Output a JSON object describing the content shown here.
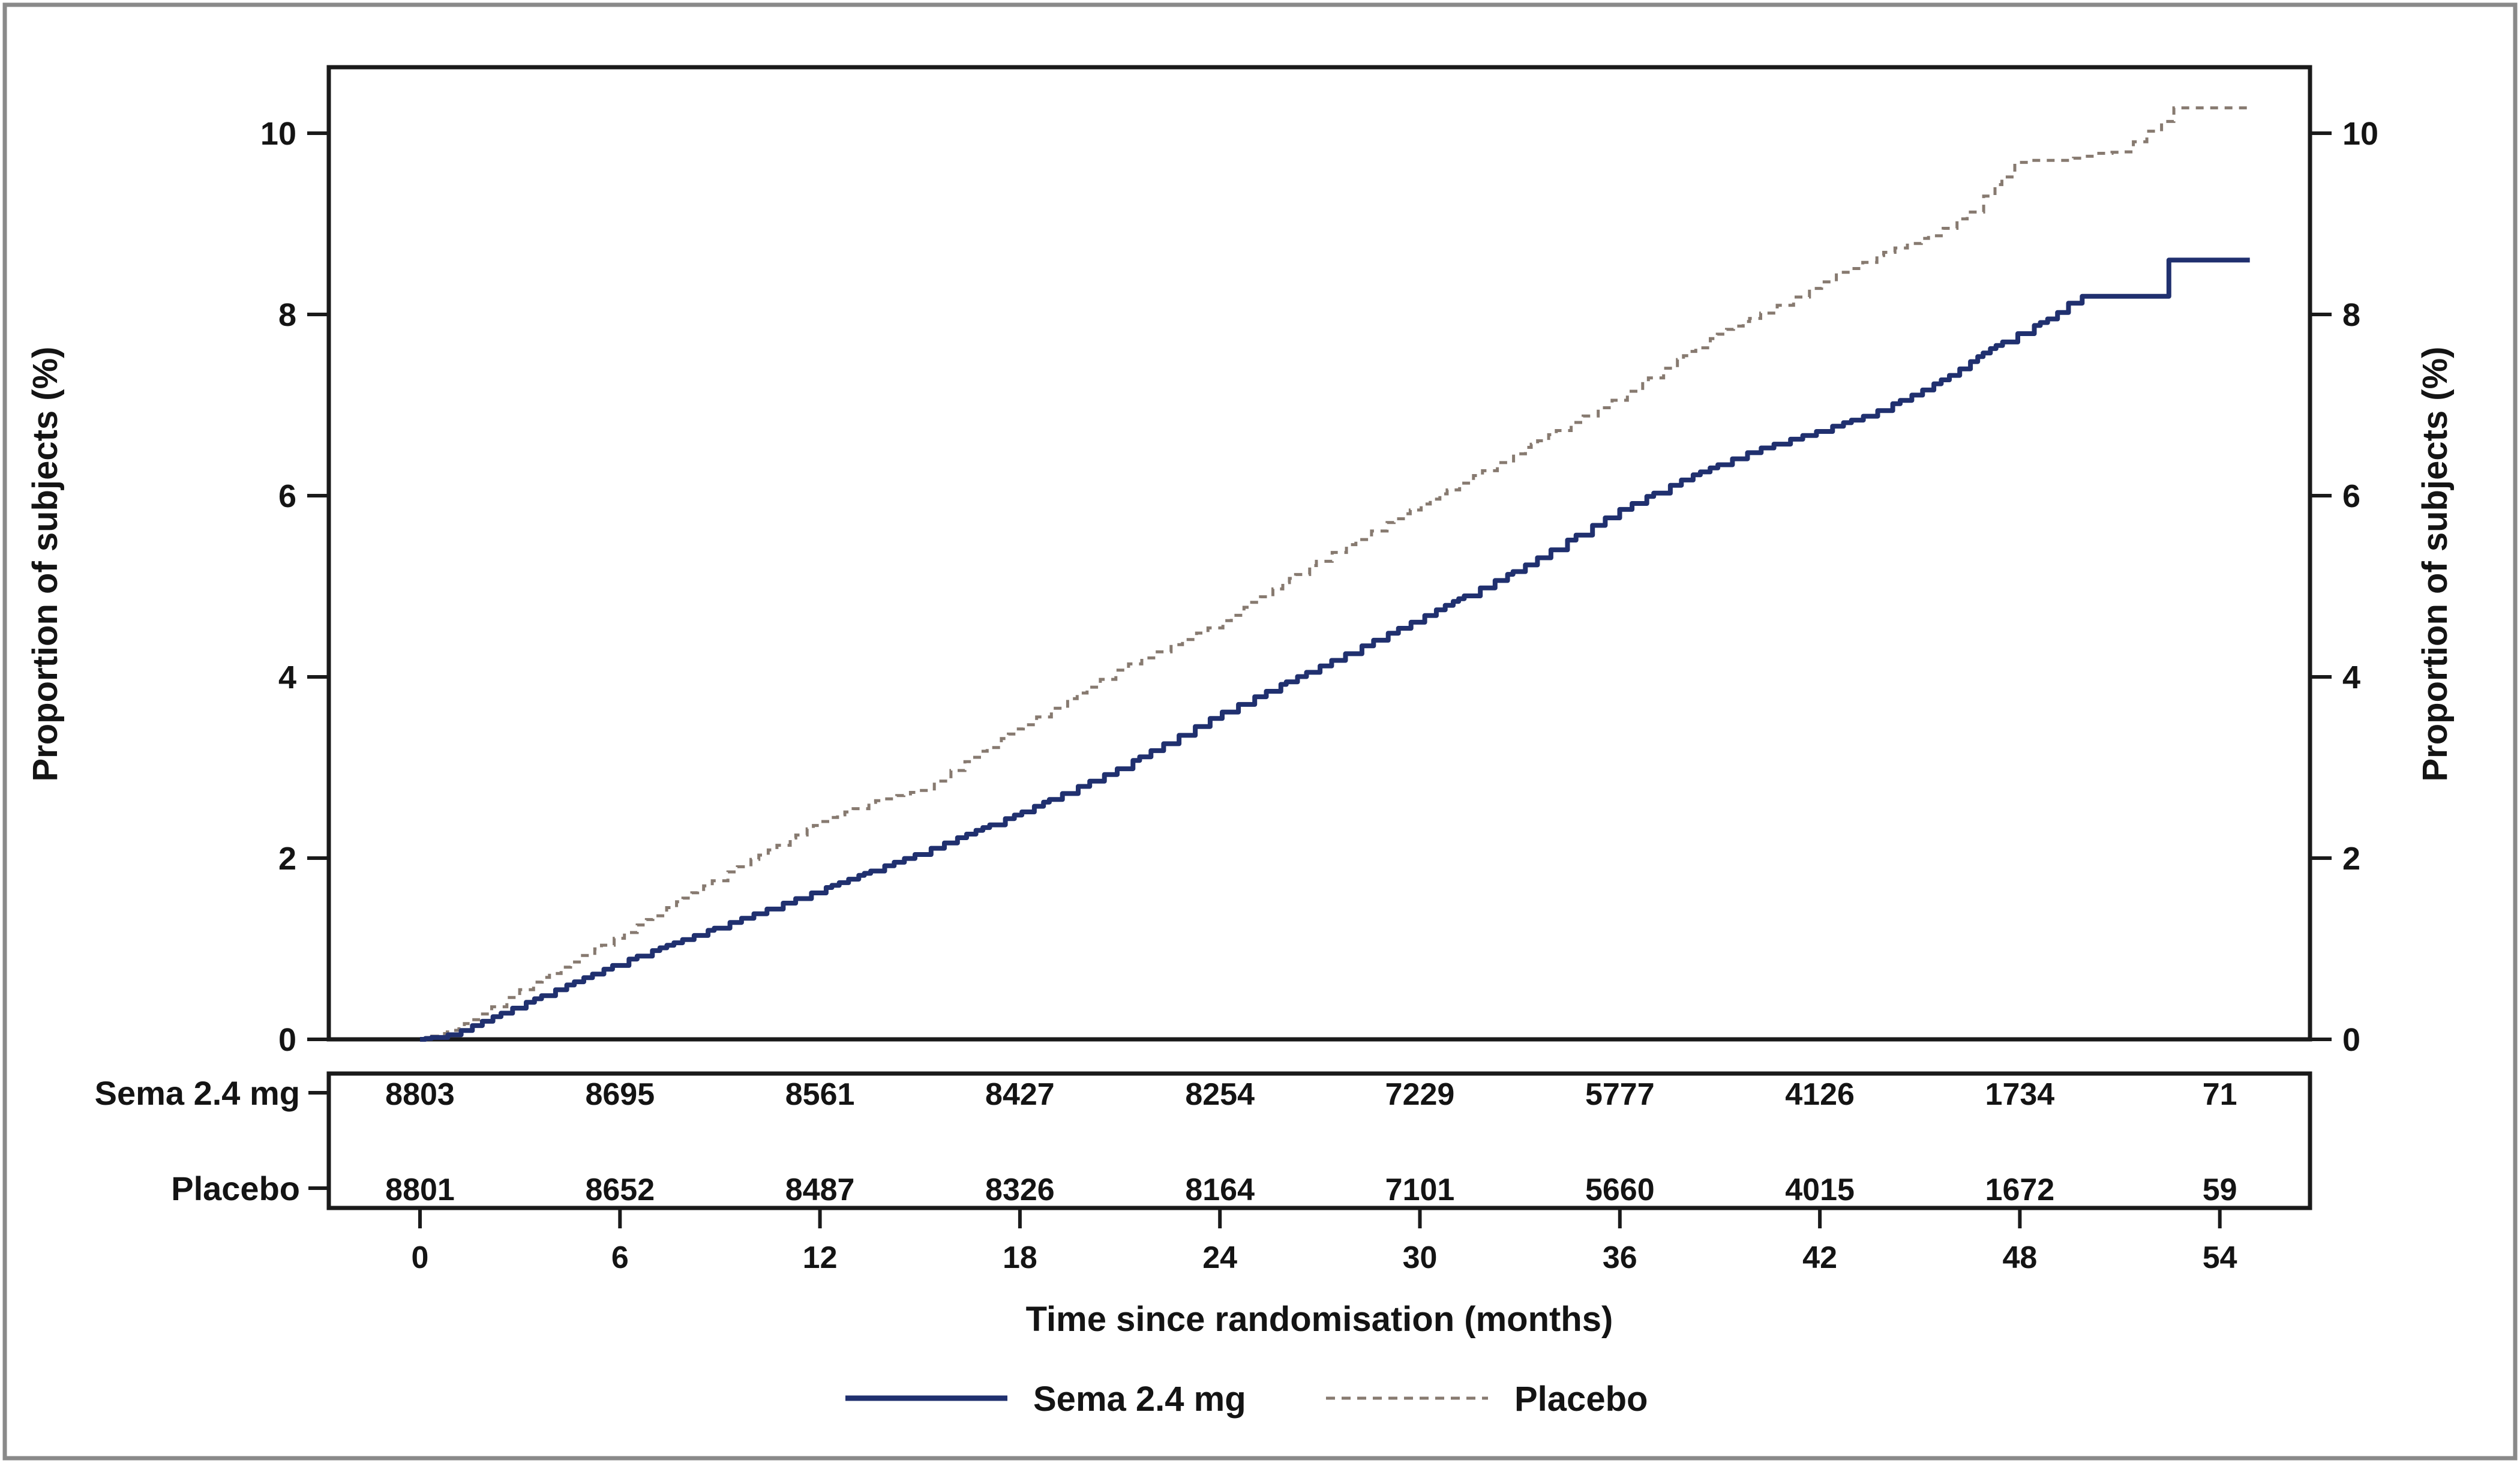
{
  "chart": {
    "x_axis": {
      "title": "Time since randomisation (months)",
      "ticks": [
        0,
        6,
        12,
        18,
        24,
        30,
        36,
        42,
        48,
        54
      ]
    },
    "y_axis": {
      "title": "Proportion of subjects (%)",
      "ticks": [
        0,
        2,
        4,
        6,
        8,
        10
      ]
    }
  },
  "chart_data": {
    "type": "line",
    "subtype": "kaplan-meier-step-cumulative-incidence",
    "title": "",
    "xlabel": "Time since randomisation (months)",
    "ylabel": "Proportion of subjects (%)",
    "xlim": [
      -2.7,
      56.5
    ],
    "ylim": [
      0,
      10.7
    ],
    "grid": false,
    "legend_position": "bottom",
    "x_sample_months": [
      0,
      6,
      12,
      18,
      24,
      30,
      36,
      42,
      48,
      54
    ],
    "series": [
      {
        "name": "Sema 2.4 mg",
        "style": "solid",
        "color": "#20306f",
        "values_at_samples": [
          0,
          0.85,
          1.65,
          2.5,
          3.6,
          4.65,
          5.85,
          6.72,
          7.8,
          8.6
        ],
        "end_value": 8.6,
        "anchors": [
          [
            0,
            0
          ],
          [
            1,
            0.06
          ],
          [
            3,
            0.38
          ],
          [
            6,
            0.85
          ],
          [
            9,
            1.25
          ],
          [
            12,
            1.65
          ],
          [
            15,
            2.06
          ],
          [
            18,
            2.5
          ],
          [
            21,
            3.0
          ],
          [
            24,
            3.6
          ],
          [
            27,
            4.12
          ],
          [
            30,
            4.65
          ],
          [
            33,
            5.2
          ],
          [
            36,
            5.85
          ],
          [
            38,
            6.2
          ],
          [
            40,
            6.5
          ],
          [
            42,
            6.72
          ],
          [
            43.5,
            6.9
          ],
          [
            45,
            7.15
          ],
          [
            46,
            7.35
          ],
          [
            47,
            7.6
          ],
          [
            48,
            7.8
          ],
          [
            49,
            7.98
          ],
          [
            49.7,
            8.2
          ],
          [
            52.1,
            8.2
          ],
          [
            52.2,
            8.6
          ],
          [
            54.9,
            8.6
          ]
        ]
      },
      {
        "name": "Placebo",
        "style": "dashed",
        "color": "#877a70",
        "values_at_samples": [
          0,
          1.15,
          2.4,
          3.45,
          4.6,
          5.9,
          7.1,
          8.35,
          9.7,
          10.28
        ],
        "end_value": 10.3,
        "anchors": [
          [
            0,
            0
          ],
          [
            1,
            0.1
          ],
          [
            3,
            0.55
          ],
          [
            6,
            1.15
          ],
          [
            9,
            1.8
          ],
          [
            12,
            2.4
          ],
          [
            13.5,
            2.62
          ],
          [
            15,
            2.75
          ],
          [
            18,
            3.45
          ],
          [
            21,
            4.1
          ],
          [
            24,
            4.6
          ],
          [
            27,
            5.3
          ],
          [
            30,
            5.9
          ],
          [
            33,
            6.5
          ],
          [
            36,
            7.1
          ],
          [
            39,
            7.8
          ],
          [
            41,
            8.15
          ],
          [
            42,
            8.35
          ],
          [
            44,
            8.7
          ],
          [
            45.5,
            8.9
          ],
          [
            46.5,
            9.15
          ],
          [
            47.3,
            9.45
          ],
          [
            47.9,
            9.7
          ],
          [
            49.3,
            9.7
          ],
          [
            50.3,
            9.78
          ],
          [
            51.3,
            9.8
          ],
          [
            51.5,
            10.0
          ],
          [
            52.2,
            10.05
          ],
          [
            52.35,
            10.28
          ],
          [
            55.0,
            10.28
          ]
        ]
      }
    ]
  },
  "risk_table": {
    "rows": [
      {
        "label": "Sema 2.4 mg",
        "counts": [
          8803,
          8695,
          8561,
          8427,
          8254,
          7229,
          5777,
          4126,
          1734,
          71
        ]
      },
      {
        "label": "Placebo",
        "counts": [
          8801,
          8652,
          8487,
          8326,
          8164,
          7101,
          5660,
          4015,
          1672,
          59
        ]
      }
    ]
  },
  "legend": {
    "items": [
      {
        "label": "Sema 2.4 mg",
        "style": "solid",
        "color": "#20306f"
      },
      {
        "label": "Placebo",
        "style": "dashed",
        "color": "#877a70"
      }
    ]
  },
  "colors": {
    "sema": "#20306f",
    "placebo": "#877a70",
    "text": "#141414",
    "plot_border": "#1a1a1a",
    "outer_frame": "#8a8a8a",
    "background": "#ffffff"
  }
}
